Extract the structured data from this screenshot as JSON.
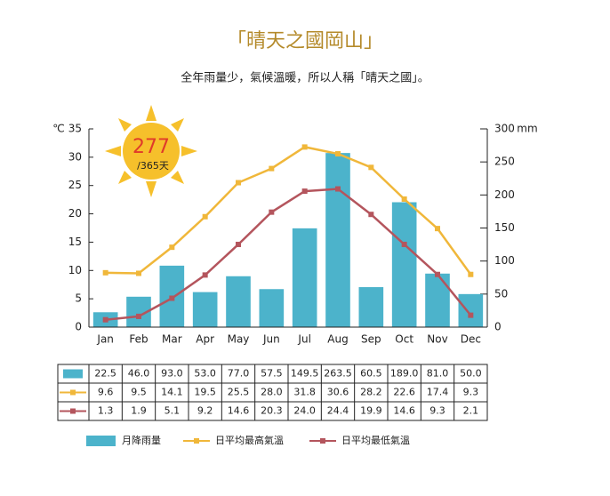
{
  "chart_data": {
    "type": "combo",
    "title": "「晴天之國岡山」",
    "subtitle": "全年雨量少，氣候溫暖，所以人稱「晴天之國」。",
    "badge": {
      "days": 277,
      "total": "/365天"
    },
    "ylabel": "℃",
    "y2label": "mm",
    "categories": [
      "Jan",
      "Feb",
      "Mar",
      "Apr",
      "May",
      "Jun",
      "Jul",
      "Aug",
      "Sep",
      "Oct",
      "Nov",
      "Dec"
    ],
    "ylim": [
      0,
      35
    ],
    "yticks": [
      0,
      5,
      10,
      15,
      20,
      25,
      30,
      35
    ],
    "y2lim": [
      0,
      300
    ],
    "y2ticks": [
      0,
      50,
      100,
      150,
      200,
      250,
      300
    ],
    "series": [
      {
        "name": "月降雨量",
        "type": "bar",
        "axis": "y2",
        "color": "#4cb3cb",
        "values": [
          22.5,
          46.0,
          93.0,
          53.0,
          77.0,
          57.5,
          149.5,
          263.5,
          60.5,
          189.0,
          81.0,
          50.0
        ],
        "value_labels": [
          "22.5",
          "46.0",
          "93.0",
          "53.0",
          "77.0",
          "57.5",
          "149.5",
          "263.5",
          "60.5",
          "189.0",
          "81.0",
          "50.0"
        ]
      },
      {
        "name": "日平均最高氣溫",
        "type": "line",
        "color": "#f0b73a",
        "values": [
          9.6,
          9.5,
          14.1,
          19.5,
          25.5,
          28.0,
          31.8,
          30.6,
          28.2,
          22.6,
          17.4,
          9.3
        ],
        "value_labels": [
          "9.6",
          "9.5",
          "14.1",
          "19.5",
          "25.5",
          "28.0",
          "31.8",
          "30.6",
          "28.2",
          "22.6",
          "17.4",
          "9.3"
        ]
      },
      {
        "name": "日平均最低氣溫",
        "type": "line",
        "color": "#b4555d",
        "values": [
          1.3,
          1.9,
          5.1,
          9.2,
          14.6,
          20.3,
          24.0,
          24.4,
          19.9,
          14.6,
          9.3,
          2.1
        ],
        "value_labels": [
          "1.3",
          "1.9",
          "5.1",
          "9.2",
          "14.6",
          "20.3",
          "24.0",
          "24.4",
          "19.9",
          "14.6",
          "9.3",
          "2.1"
        ]
      }
    ]
  }
}
